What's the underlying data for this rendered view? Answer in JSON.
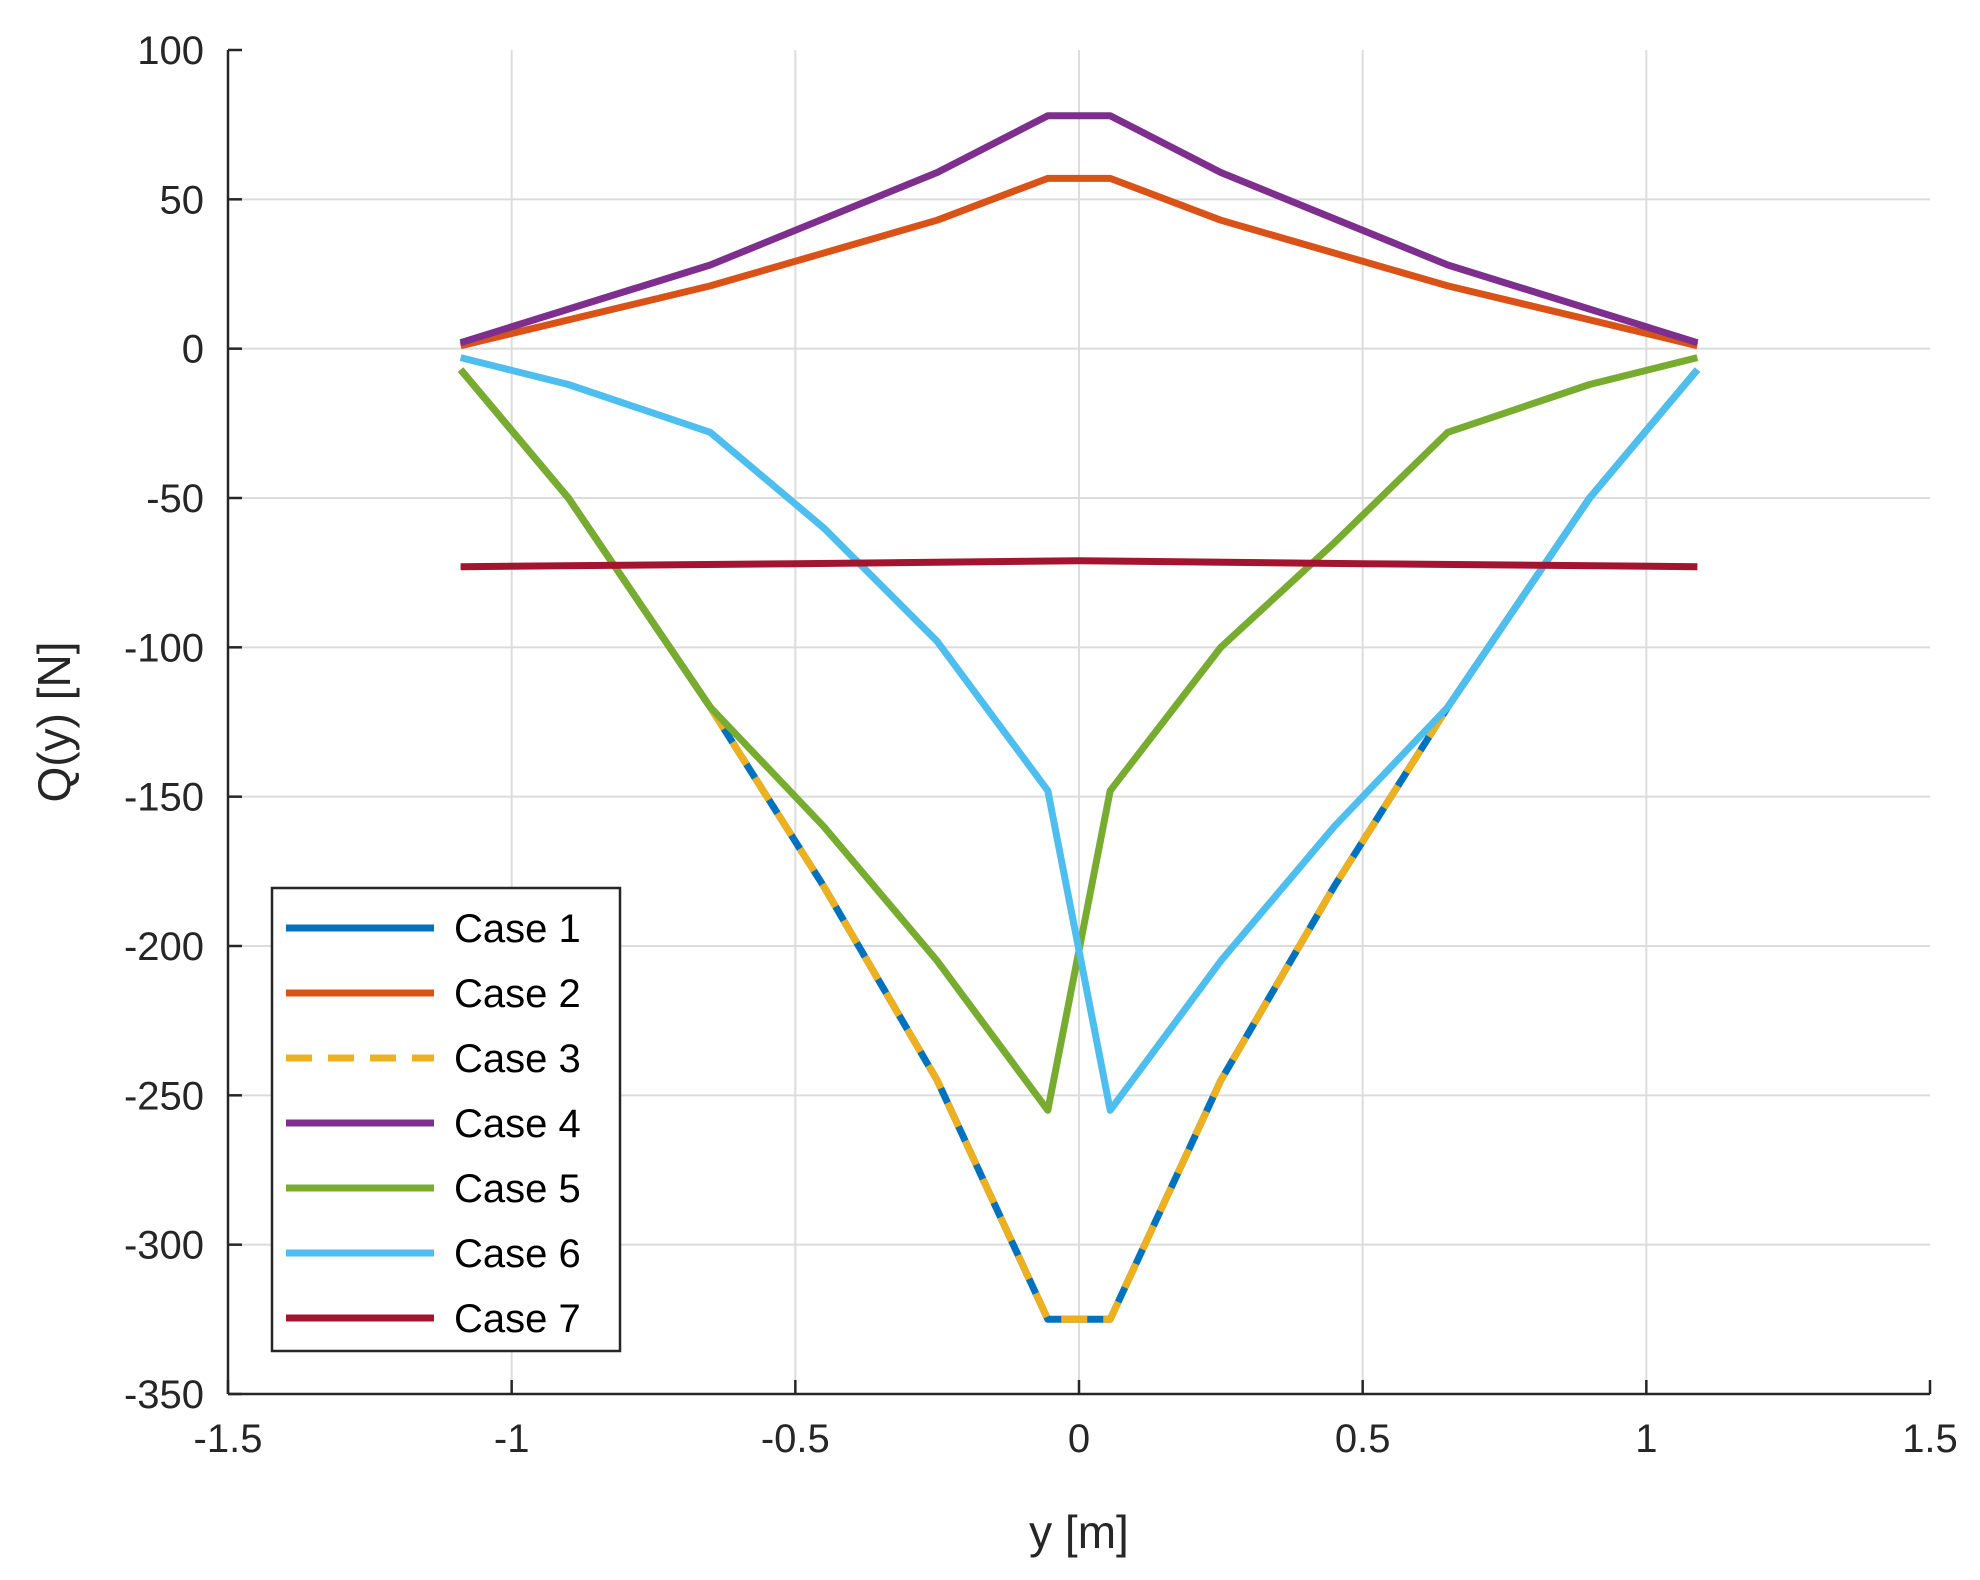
{
  "chart_data": {
    "type": "line",
    "xlabel": "y [m]",
    "ylabel": "Q(y) [N]",
    "xlim": [
      -1.5,
      1.5
    ],
    "ylim": [
      -350,
      100
    ],
    "xticks": [
      -1.5,
      -1,
      -0.5,
      0,
      0.5,
      1,
      1.5
    ],
    "xtick_labels": [
      "-1.5",
      "-1",
      "-0.5",
      "0",
      "0.5",
      "1",
      "1.5"
    ],
    "yticks": [
      100,
      50,
      0,
      -50,
      -100,
      -150,
      -200,
      -250,
      -300,
      -350
    ],
    "ytick_labels": [
      "100",
      "50",
      "0",
      "-50",
      "-100",
      "-150",
      "-200",
      "-250",
      "-300",
      "-350"
    ],
    "grid": true,
    "legend_position": "bottom-left",
    "series": [
      {
        "name": "Case 1",
        "color": "#0072BD",
        "dashed": false,
        "x": [
          -1.09,
          -0.9,
          -0.65,
          -0.45,
          -0.25,
          -0.055,
          0.055,
          0.25,
          0.45,
          0.65,
          0.9,
          1.09
        ],
        "y": [
          -7,
          -50,
          -120,
          -180,
          -245,
          -325,
          -325,
          -245,
          -180,
          -120,
          -50,
          -7
        ]
      },
      {
        "name": "Case 2",
        "color": "#D95319",
        "dashed": false,
        "x": [
          -1.09,
          -0.65,
          -0.25,
          -0.055,
          0.055,
          0.25,
          0.65,
          1.09
        ],
        "y": [
          1,
          21,
          43,
          57,
          57,
          43,
          21,
          1
        ]
      },
      {
        "name": "Case 3",
        "color": "#EDB120",
        "dashed": true,
        "x": [
          -1.09,
          -0.9,
          -0.65,
          -0.45,
          -0.25,
          -0.055,
          0.055,
          0.25,
          0.45,
          0.65,
          0.9,
          1.09
        ],
        "y": [
          -7,
          -50,
          -120,
          -180,
          -245,
          -325,
          -325,
          -245,
          -180,
          -120,
          -50,
          -7
        ]
      },
      {
        "name": "Case 4",
        "color": "#7E2F8E",
        "dashed": false,
        "x": [
          -1.09,
          -0.65,
          -0.25,
          -0.055,
          0.055,
          0.25,
          0.65,
          1.09
        ],
        "y": [
          2,
          28,
          59,
          78,
          78,
          59,
          28,
          2
        ]
      },
      {
        "name": "Case 5",
        "color": "#77AC30",
        "dashed": false,
        "x": [
          -1.09,
          -0.9,
          -0.65,
          -0.45,
          -0.25,
          -0.055,
          0.055,
          0.25,
          0.45,
          0.65,
          0.9,
          1.09
        ],
        "y": [
          -7,
          -50,
          -120,
          -160,
          -205,
          -255,
          -148,
          -100,
          -65,
          -28,
          -12,
          -3
        ]
      },
      {
        "name": "Case 6",
        "color": "#4DBEEE",
        "dashed": false,
        "x": [
          -1.09,
          -0.9,
          -0.65,
          -0.45,
          -0.25,
          -0.055,
          0.055,
          0.25,
          0.45,
          0.65,
          0.9,
          1.09
        ],
        "y": [
          -3,
          -12,
          -28,
          -60,
          -98,
          -148,
          -255,
          -205,
          -160,
          -120,
          -50,
          -7
        ]
      },
      {
        "name": "Case 7",
        "color": "#A2142F",
        "dashed": false,
        "x": [
          -1.09,
          -0.5,
          0,
          0.5,
          1.09
        ],
        "y": [
          -73,
          -72,
          -71,
          -72,
          -73
        ]
      }
    ]
  }
}
